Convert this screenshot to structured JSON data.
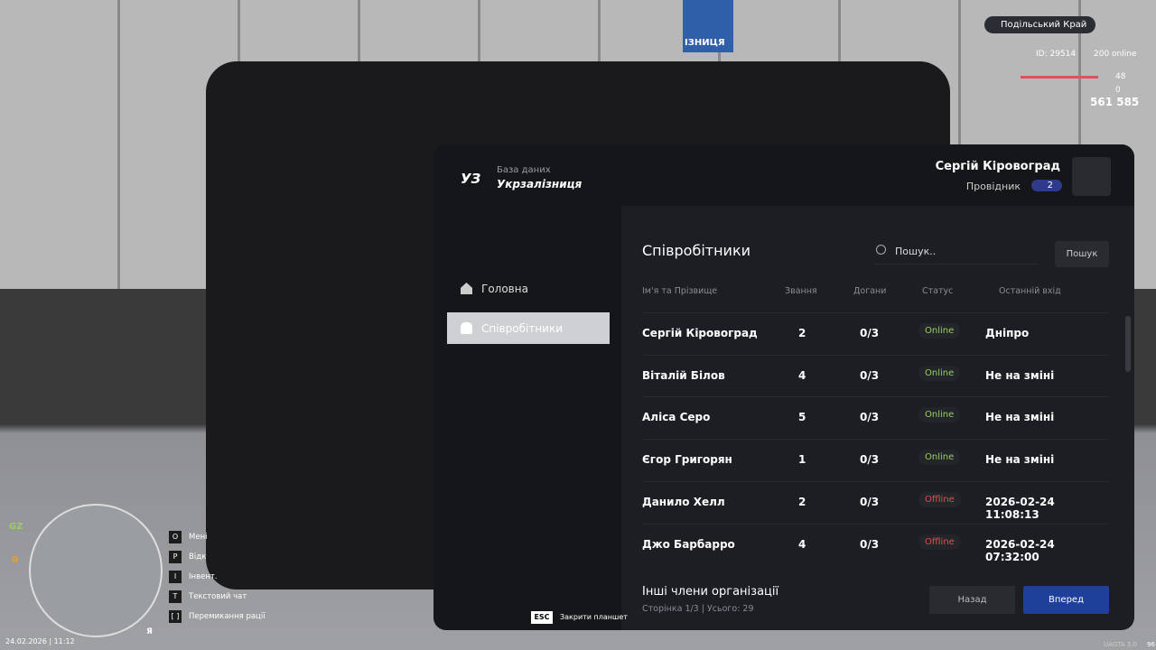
{
  "world": {
    "sign": "ІЗНИЦЯ"
  },
  "hud": {
    "server": "Подільський Край",
    "id": "ID: 29514",
    "online": "200 online",
    "health": "48",
    "armor": "0",
    "money": "561 585",
    "zone": "GZ",
    "wanted": "0",
    "datetime": "24.02.2026 | 11:12",
    "mic_key": "Я",
    "keys": [
      {
        "key": "O",
        "label": "Мені"
      },
      {
        "key": "P",
        "label": "Відк"
      },
      {
        "key": "I",
        "label": "Інвент."
      },
      {
        "key": "T",
        "label": "Текстовий чат"
      },
      {
        "key": "[ ]",
        "label": "Перемикання рації"
      }
    ],
    "close_key": "ESC",
    "close_label": "Закрити планшет",
    "version": "UAGTA 3.0",
    "fps": "96"
  },
  "tablet": {
    "brand": {
      "logo": "УЗ",
      "subtitle": "База даних",
      "title": "Укрзалізниця"
    },
    "user": {
      "name": "Сергій Кіровоград",
      "role": "Провідник",
      "rank": "2"
    },
    "nav": [
      "Головна",
      "Співробітники"
    ],
    "section_title": "Співробітники",
    "search_placeholder": "Пошук..",
    "search_button": "Пошук",
    "table": {
      "headers": [
        "Ім'я та Прізвище",
        "Звання",
        "Догани",
        "Статус",
        "Останній вхід"
      ],
      "rows": [
        {
          "name": "Сергій Кіровоград",
          "rank": "2",
          "warnings": "0/3",
          "status": "Online",
          "status_color": "#9ccc65",
          "last_login": "Дніпро"
        },
        {
          "name": "Віталій Білов",
          "rank": "4",
          "warnings": "0/3",
          "status": "Online",
          "status_color": "#9ccc65",
          "last_login": "Не на зміні"
        },
        {
          "name": "Аліса Серо",
          "rank": "5",
          "warnings": "0/3",
          "status": "Online",
          "status_color": "#9ccc65",
          "last_login": "Не на зміні"
        },
        {
          "name": "Єгор Григорян",
          "rank": "1",
          "warnings": "0/3",
          "status": "Online",
          "status_color": "#9ccc65",
          "last_login": "Не на зміні"
        },
        {
          "name": "Данило Хелл",
          "rank": "2",
          "warnings": "0/3",
          "status": "Offline",
          "status_color": "#e0504a",
          "last_login": "2026-02-24 11:08:13"
        },
        {
          "name": "Джо Барбарро",
          "rank": "4",
          "warnings": "0/3",
          "status": "Offline",
          "status_color": "#e0504a",
          "last_login": "2026-02-24 07:32:00"
        }
      ]
    },
    "footer": {
      "title": "Інші члени організації",
      "pagination": "Сторінка 1/3 | Усього: 29",
      "back": "Назад",
      "next": "Вперед"
    }
  }
}
